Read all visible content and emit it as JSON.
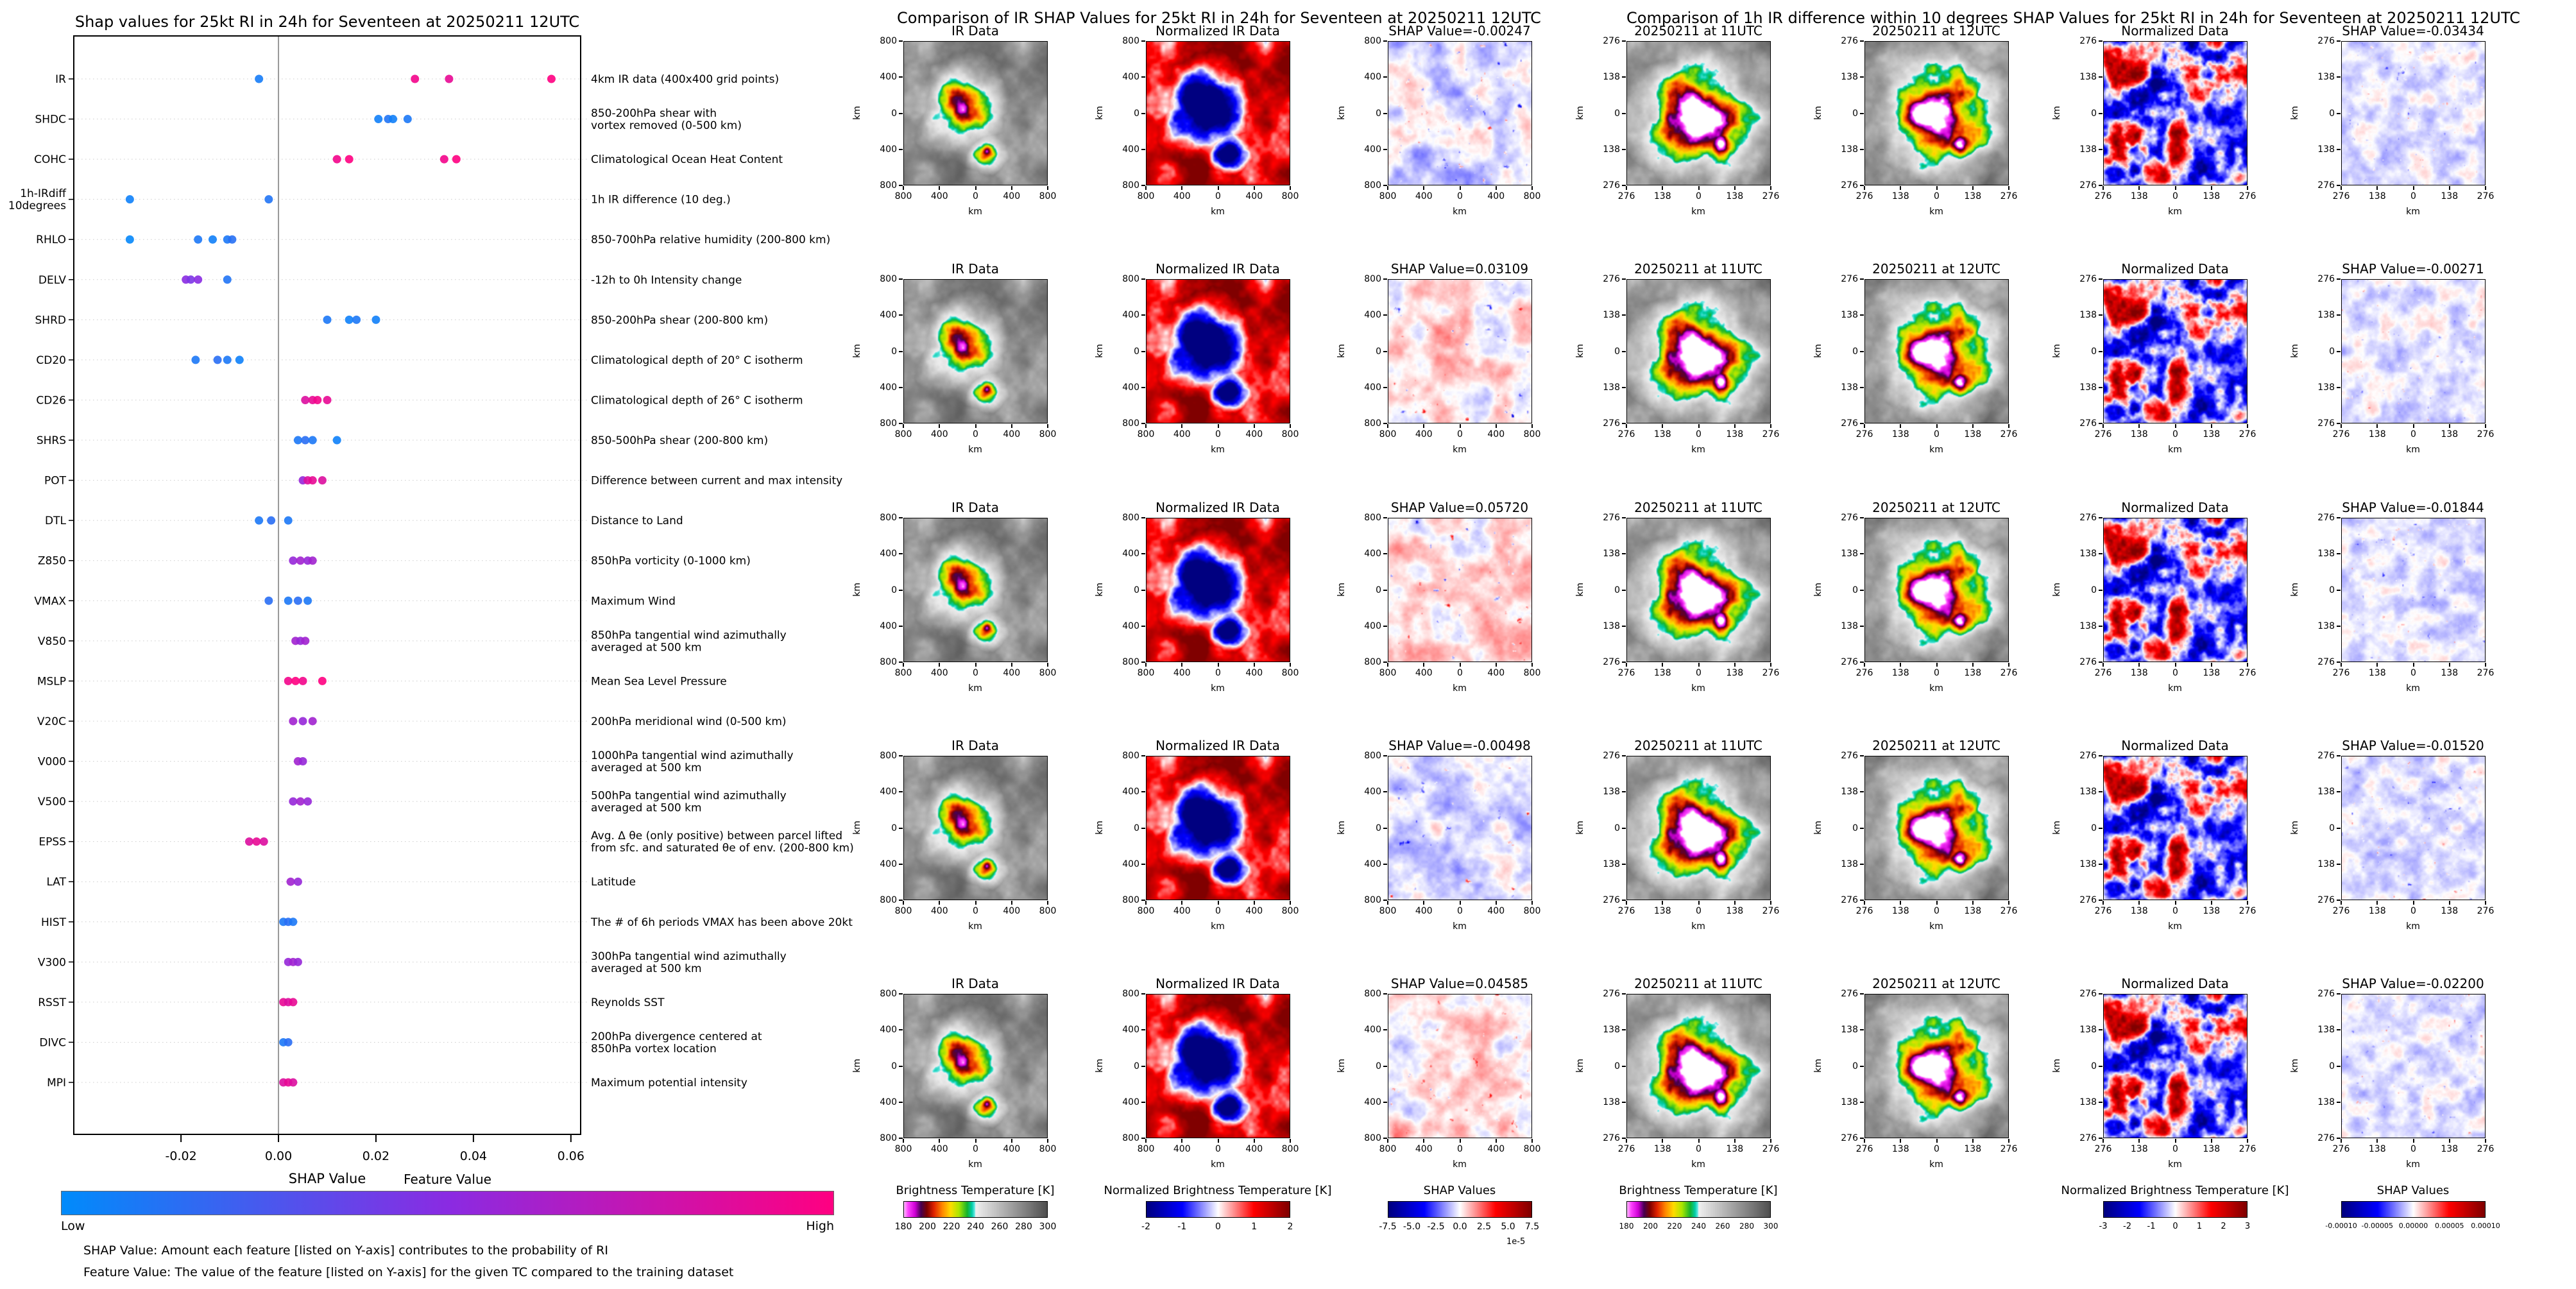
{
  "chart_data": [
    {
      "id": "shap_beeswarm",
      "type": "scatter",
      "title": "Shap values for 25kt RI in 24h for Seventeen at 20250211 12UTC",
      "xlabel": "SHAP Value",
      "xlim": [
        -0.042,
        0.062
      ],
      "xticks": [
        -0.02,
        0,
        0.02,
        0.04,
        0.06
      ],
      "xtick_labels": [
        "-0.02",
        "0.00",
        "0.02",
        "0.04",
        "0.06"
      ],
      "legend_position": "bottom",
      "grid": "dotted-rows",
      "colorbar": {
        "title": "Feature Value",
        "low": "Low",
        "high": "High",
        "gradient": [
          "#008bfb",
          "#8a2be2",
          "#ff0081"
        ]
      },
      "footnotes": [
        "SHAP Value: Amount each feature [listed on Y-axis] contributes to the probability of RI",
        "Feature Value: The value of the feature [listed on Y-axis] for the given TC compared to the training dataset"
      ],
      "features": [
        {
          "name": "IR",
          "desc": "4km IR data (400x400 grid points)",
          "points": [
            [
              -0.004,
              0.08
            ],
            [
              0.028,
              0.95
            ],
            [
              0.035,
              0.9
            ],
            [
              0.056,
              1.0
            ]
          ]
        },
        {
          "name": "SHDC",
          "desc": "850-200hPa shear with\nvortex removed (0-500 km)",
          "points": [
            [
              0.0205,
              0.06
            ],
            [
              0.0225,
              0.12
            ],
            [
              0.0235,
              0.06
            ],
            [
              0.0265,
              0.1
            ]
          ]
        },
        {
          "name": "COHC",
          "desc": "Climatological Ocean Heat Content",
          "points": [
            [
              0.012,
              0.95
            ],
            [
              0.0145,
              1.0
            ],
            [
              0.034,
              0.95
            ],
            [
              0.0365,
              1.0
            ]
          ]
        },
        {
          "name": "1h-IRdiff\n10degrees",
          "desc": "1h IR difference (10 deg.)",
          "points": [
            [
              -0.0305,
              0.05
            ],
            [
              -0.002,
              0.12
            ]
          ]
        },
        {
          "name": "RHLO",
          "desc": "850-700hPa relative humidity (200-800 km)",
          "points": [
            [
              -0.0305,
              0.02
            ],
            [
              -0.0165,
              0.1
            ],
            [
              -0.0135,
              0.06
            ],
            [
              -0.0105,
              0.1
            ],
            [
              -0.0095,
              0.14
            ]
          ]
        },
        {
          "name": "DELV",
          "desc": "-12h to 0h Intensity change",
          "points": [
            [
              -0.019,
              0.5
            ],
            [
              -0.018,
              0.45
            ],
            [
              -0.0165,
              0.5
            ],
            [
              -0.0105,
              0.12
            ]
          ]
        },
        {
          "name": "SHRD",
          "desc": "850-200hPa shear (200-800 km)",
          "points": [
            [
              0.01,
              0.1
            ],
            [
              0.0145,
              0.05
            ],
            [
              0.016,
              0.1
            ],
            [
              0.02,
              0.06
            ]
          ]
        },
        {
          "name": "CD20",
          "desc": "Climatological depth of 20° C isotherm",
          "points": [
            [
              -0.017,
              0.1
            ],
            [
              -0.0125,
              0.15
            ],
            [
              -0.0105,
              0.1
            ],
            [
              -0.008,
              0.05
            ]
          ]
        },
        {
          "name": "CD26",
          "desc": "Climatological depth of 26° C isotherm",
          "points": [
            [
              0.0055,
              0.85
            ],
            [
              0.007,
              0.9
            ],
            [
              0.008,
              0.95
            ],
            [
              0.01,
              0.9
            ]
          ]
        },
        {
          "name": "SHRS",
          "desc": "850-500hPa shear (200-800 km)",
          "points": [
            [
              0.004,
              0.1
            ],
            [
              0.0055,
              0.15
            ],
            [
              0.007,
              0.1
            ],
            [
              0.012,
              0.05
            ]
          ]
        },
        {
          "name": "POT",
          "desc": "Difference between current and max intensity",
          "points": [
            [
              0.005,
              0.55
            ],
            [
              0.006,
              0.85
            ],
            [
              0.007,
              0.9
            ],
            [
              0.009,
              0.85
            ]
          ]
        },
        {
          "name": "DTL",
          "desc": "Distance to Land",
          "points": [
            [
              -0.004,
              0.1
            ],
            [
              -0.0015,
              0.15
            ],
            [
              0.002,
              0.1
            ]
          ]
        },
        {
          "name": "Z850",
          "desc": "850hPa vorticity (0-1000 km)",
          "points": [
            [
              0.003,
              0.55
            ],
            [
              0.0045,
              0.6
            ],
            [
              0.006,
              0.55
            ],
            [
              0.007,
              0.6
            ]
          ]
        },
        {
          "name": "VMAX",
          "desc": "Maximum Wind",
          "points": [
            [
              -0.002,
              0.15
            ],
            [
              0.002,
              0.1
            ],
            [
              0.004,
              0.15
            ],
            [
              0.006,
              0.1
            ]
          ]
        },
        {
          "name": "V850",
          "desc": "850hPa tangential wind azimuthally\naveraged at 500 km",
          "points": [
            [
              0.0035,
              0.6
            ],
            [
              0.0045,
              0.55
            ],
            [
              0.0055,
              0.6
            ]
          ]
        },
        {
          "name": "MSLP",
          "desc": "Mean Sea Level Pressure",
          "points": [
            [
              0.002,
              0.95
            ],
            [
              0.0035,
              1.0
            ],
            [
              0.005,
              0.95
            ],
            [
              0.009,
              1.0
            ]
          ]
        },
        {
          "name": "V20C",
          "desc": "200hPa meridional wind (0-500 km)",
          "points": [
            [
              0.003,
              0.6
            ],
            [
              0.005,
              0.55
            ],
            [
              0.007,
              0.6
            ]
          ]
        },
        {
          "name": "V000",
          "desc": "1000hPa tangential wind azimuthally\naveraged at 500 km",
          "points": [
            [
              0.004,
              0.6
            ],
            [
              0.005,
              0.55
            ]
          ]
        },
        {
          "name": "V500",
          "desc": "500hPa tangential wind azimuthally\naveraged at 500 km",
          "points": [
            [
              0.003,
              0.55
            ],
            [
              0.0045,
              0.6
            ],
            [
              0.006,
              0.55
            ]
          ]
        },
        {
          "name": "EPSS",
          "desc": "Avg. Δ θe (only positive) between parcel lifted\nfrom sfc. and saturated θe of env. (200-800 km)",
          "points": [
            [
              -0.006,
              0.85
            ],
            [
              -0.0045,
              0.9
            ],
            [
              -0.003,
              0.85
            ]
          ]
        },
        {
          "name": "LAT",
          "desc": "Latitude",
          "points": [
            [
              0.0025,
              0.6
            ],
            [
              0.004,
              0.55
            ]
          ]
        },
        {
          "name": "HIST",
          "desc": "The # of 6h periods VMAX has been above 20kt",
          "points": [
            [
              0.001,
              0.1
            ],
            [
              0.002,
              0.15
            ],
            [
              0.003,
              0.1
            ]
          ]
        },
        {
          "name": "V300",
          "desc": "300hPa tangential wind azimuthally\naveraged at 500 km",
          "points": [
            [
              0.002,
              0.55
            ],
            [
              0.003,
              0.6
            ],
            [
              0.004,
              0.55
            ]
          ]
        },
        {
          "name": "RSST",
          "desc": "Reynolds SST",
          "points": [
            [
              0.001,
              0.9
            ],
            [
              0.002,
              0.85
            ],
            [
              0.003,
              0.9
            ]
          ]
        },
        {
          "name": "DIVC",
          "desc": "200hPa divergence centered at\n850hPa vortex location",
          "points": [
            [
              0.001,
              0.1
            ],
            [
              0.002,
              0.15
            ]
          ]
        },
        {
          "name": "MPI",
          "desc": "Maximum potential intensity",
          "points": [
            [
              0.001,
              0.85
            ],
            [
              0.002,
              0.9
            ],
            [
              0.003,
              0.85
            ]
          ]
        }
      ]
    },
    {
      "id": "ir_shap_grid",
      "type": "heatmap",
      "title": "Comparison of IR SHAP Values for 25kt RI in 24h for Seventeen at 20250211 12UTC",
      "columns": [
        "IR Data",
        "Normalized IR Data",
        "SHAP Value"
      ],
      "row_shap_labels": [
        "SHAP Value=-0.00247",
        "SHAP Value=0.03109",
        "SHAP Value=0.05720",
        "SHAP Value=-0.00498",
        "SHAP Value=0.04585"
      ],
      "row_shap_values": [
        -0.00247,
        0.03109,
        0.0572,
        -0.00498,
        0.04585
      ],
      "axis": {
        "unit": "km",
        "ticks": [
          "800",
          "400",
          "0",
          "400",
          "800"
        ]
      },
      "colorbars": [
        {
          "label": "Brightness Temperature [K]",
          "ticks": [
            "180",
            "200",
            "220",
            "240",
            "260",
            "280",
            "300"
          ],
          "palette": "ir"
        },
        {
          "label": "Normalized Brightness Temperature [K]",
          "ticks": [
            "-2",
            "-1",
            "0",
            "1",
            "2"
          ],
          "palette": "diverging"
        },
        {
          "label": "SHAP Values",
          "ticks": [
            "-7.5",
            "-5.0",
            "-2.5",
            "0.0",
            "2.5",
            "5.0",
            "7.5"
          ],
          "offset_text": "1e-5",
          "palette": "diverging"
        }
      ]
    },
    {
      "id": "irdiff_shap_grid",
      "type": "heatmap",
      "title": "Comparison of 1h IR difference within 10 degrees SHAP Values for 25kt RI in 24h for Seventeen at 20250211 12UTC",
      "columns": [
        "20250211 at 11UTC",
        "20250211 at 12UTC",
        "Normalized Data",
        "SHAP Value"
      ],
      "row_shap_labels": [
        "SHAP Value=-0.03434",
        "SHAP Value=-0.00271",
        "SHAP Value=-0.01844",
        "SHAP Value=-0.01520",
        "SHAP Value=-0.02200"
      ],
      "row_shap_values": [
        -0.03434,
        -0.00271,
        -0.01844,
        -0.0152,
        -0.022
      ],
      "axis": {
        "unit": "km",
        "ticks": [
          "276",
          "138",
          "0",
          "138",
          "276"
        ]
      },
      "colorbars": [
        {
          "label": "Brightness Temperature [K]",
          "ticks": [
            "180",
            "200",
            "220",
            "240",
            "260",
            "280",
            "300"
          ],
          "palette": "ir"
        },
        {
          "label": "Normalized Brightness Temperature [K]",
          "ticks": [
            "-3",
            "-2",
            "-1",
            "0",
            "1",
            "2",
            "3"
          ],
          "palette": "diverging"
        },
        {
          "label": "SHAP Values",
          "ticks": [
            "-0.00010",
            "-0.00005",
            "0.00000",
            "0.00005",
            "0.00010"
          ],
          "palette": "diverging"
        }
      ]
    }
  ]
}
